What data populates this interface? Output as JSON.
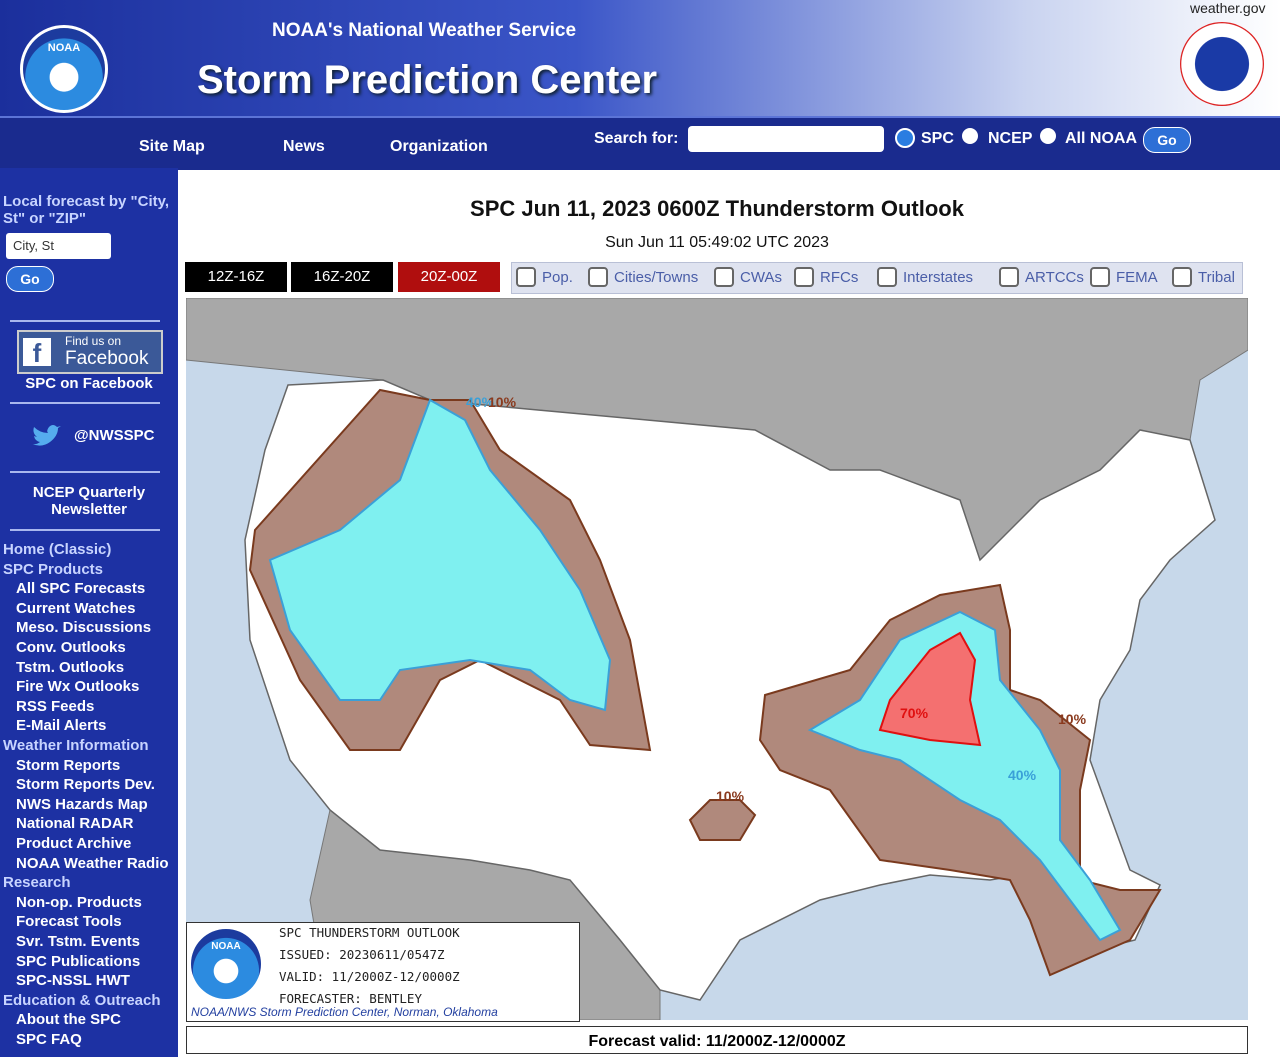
{
  "header": {
    "site_link": "weather.gov",
    "agency": "NOAA's National Weather Service",
    "title": "Storm Prediction Center",
    "noaa_logo": "NOAA"
  },
  "nav": {
    "links": [
      "Site Map",
      "News",
      "Organization"
    ],
    "search_label": "Search for:",
    "options": [
      "SPC",
      "NCEP",
      "All NOAA"
    ],
    "button": "Go"
  },
  "sidebar": {
    "local_label": "Local forecast by \"City, St\" or \"ZIP\"",
    "placeholder": "City, St",
    "go": "Go",
    "facebook_badge_top": "Find us on",
    "facebook_badge": "Facebook",
    "facebook": "SPC on Facebook",
    "twitter": "@NWSSPC",
    "newsletter": "NCEP Quarterly Newsletter",
    "sections": [
      {
        "heading": "Home (Classic)",
        "items": []
      },
      {
        "heading": "SPC Products",
        "items": [
          "All SPC Forecasts",
          "Current Watches",
          "Meso. Discussions",
          "Conv. Outlooks",
          "Tstm. Outlooks",
          "Fire Wx Outlooks",
          "RSS Feeds",
          "E-Mail Alerts"
        ]
      },
      {
        "heading": "Weather Information",
        "items": [
          "Storm Reports",
          "Storm Reports Dev.",
          "NWS Hazards Map",
          "National RADAR",
          "Product Archive",
          "NOAA Weather Radio"
        ]
      },
      {
        "heading": "Research",
        "items": [
          "Non-op. Products",
          "Forecast Tools",
          "Svr. Tstm. Events",
          "SPC Publications",
          "SPC-NSSL HWT"
        ]
      },
      {
        "heading": "Education & Outreach",
        "items": [
          "About the SPC",
          "SPC FAQ"
        ]
      }
    ]
  },
  "main": {
    "title": "SPC Jun 11, 2023 0600Z Thunderstorm Outlook",
    "timestamp": "Sun Jun 11 05:49:02 UTC 2023",
    "tabs": [
      "12Z-16Z",
      "16Z-20Z",
      "20Z-00Z"
    ],
    "overlays": [
      "Pop.",
      "Cities/Towns",
      "CWAs",
      "RFCs",
      "Interstates",
      "ARTCCs",
      "FEMA",
      "Tribal"
    ],
    "map_labels": [
      "40%",
      "10%",
      "70%",
      "10%",
      "40%",
      "10%"
    ],
    "legend": {
      "logo": "NOAA",
      "lines": [
        "SPC THUNDERSTORM OUTLOOK",
        "ISSUED: 20230611/0547Z",
        "VALID: 11/2000Z-12/0000Z",
        "FORECASTER: BENTLEY"
      ],
      "credit": "NOAA/NWS Storm Prediction Center, Norman, Oklahoma"
    },
    "footer": "Forecast valid: 11/2000Z-12/0000Z"
  }
}
